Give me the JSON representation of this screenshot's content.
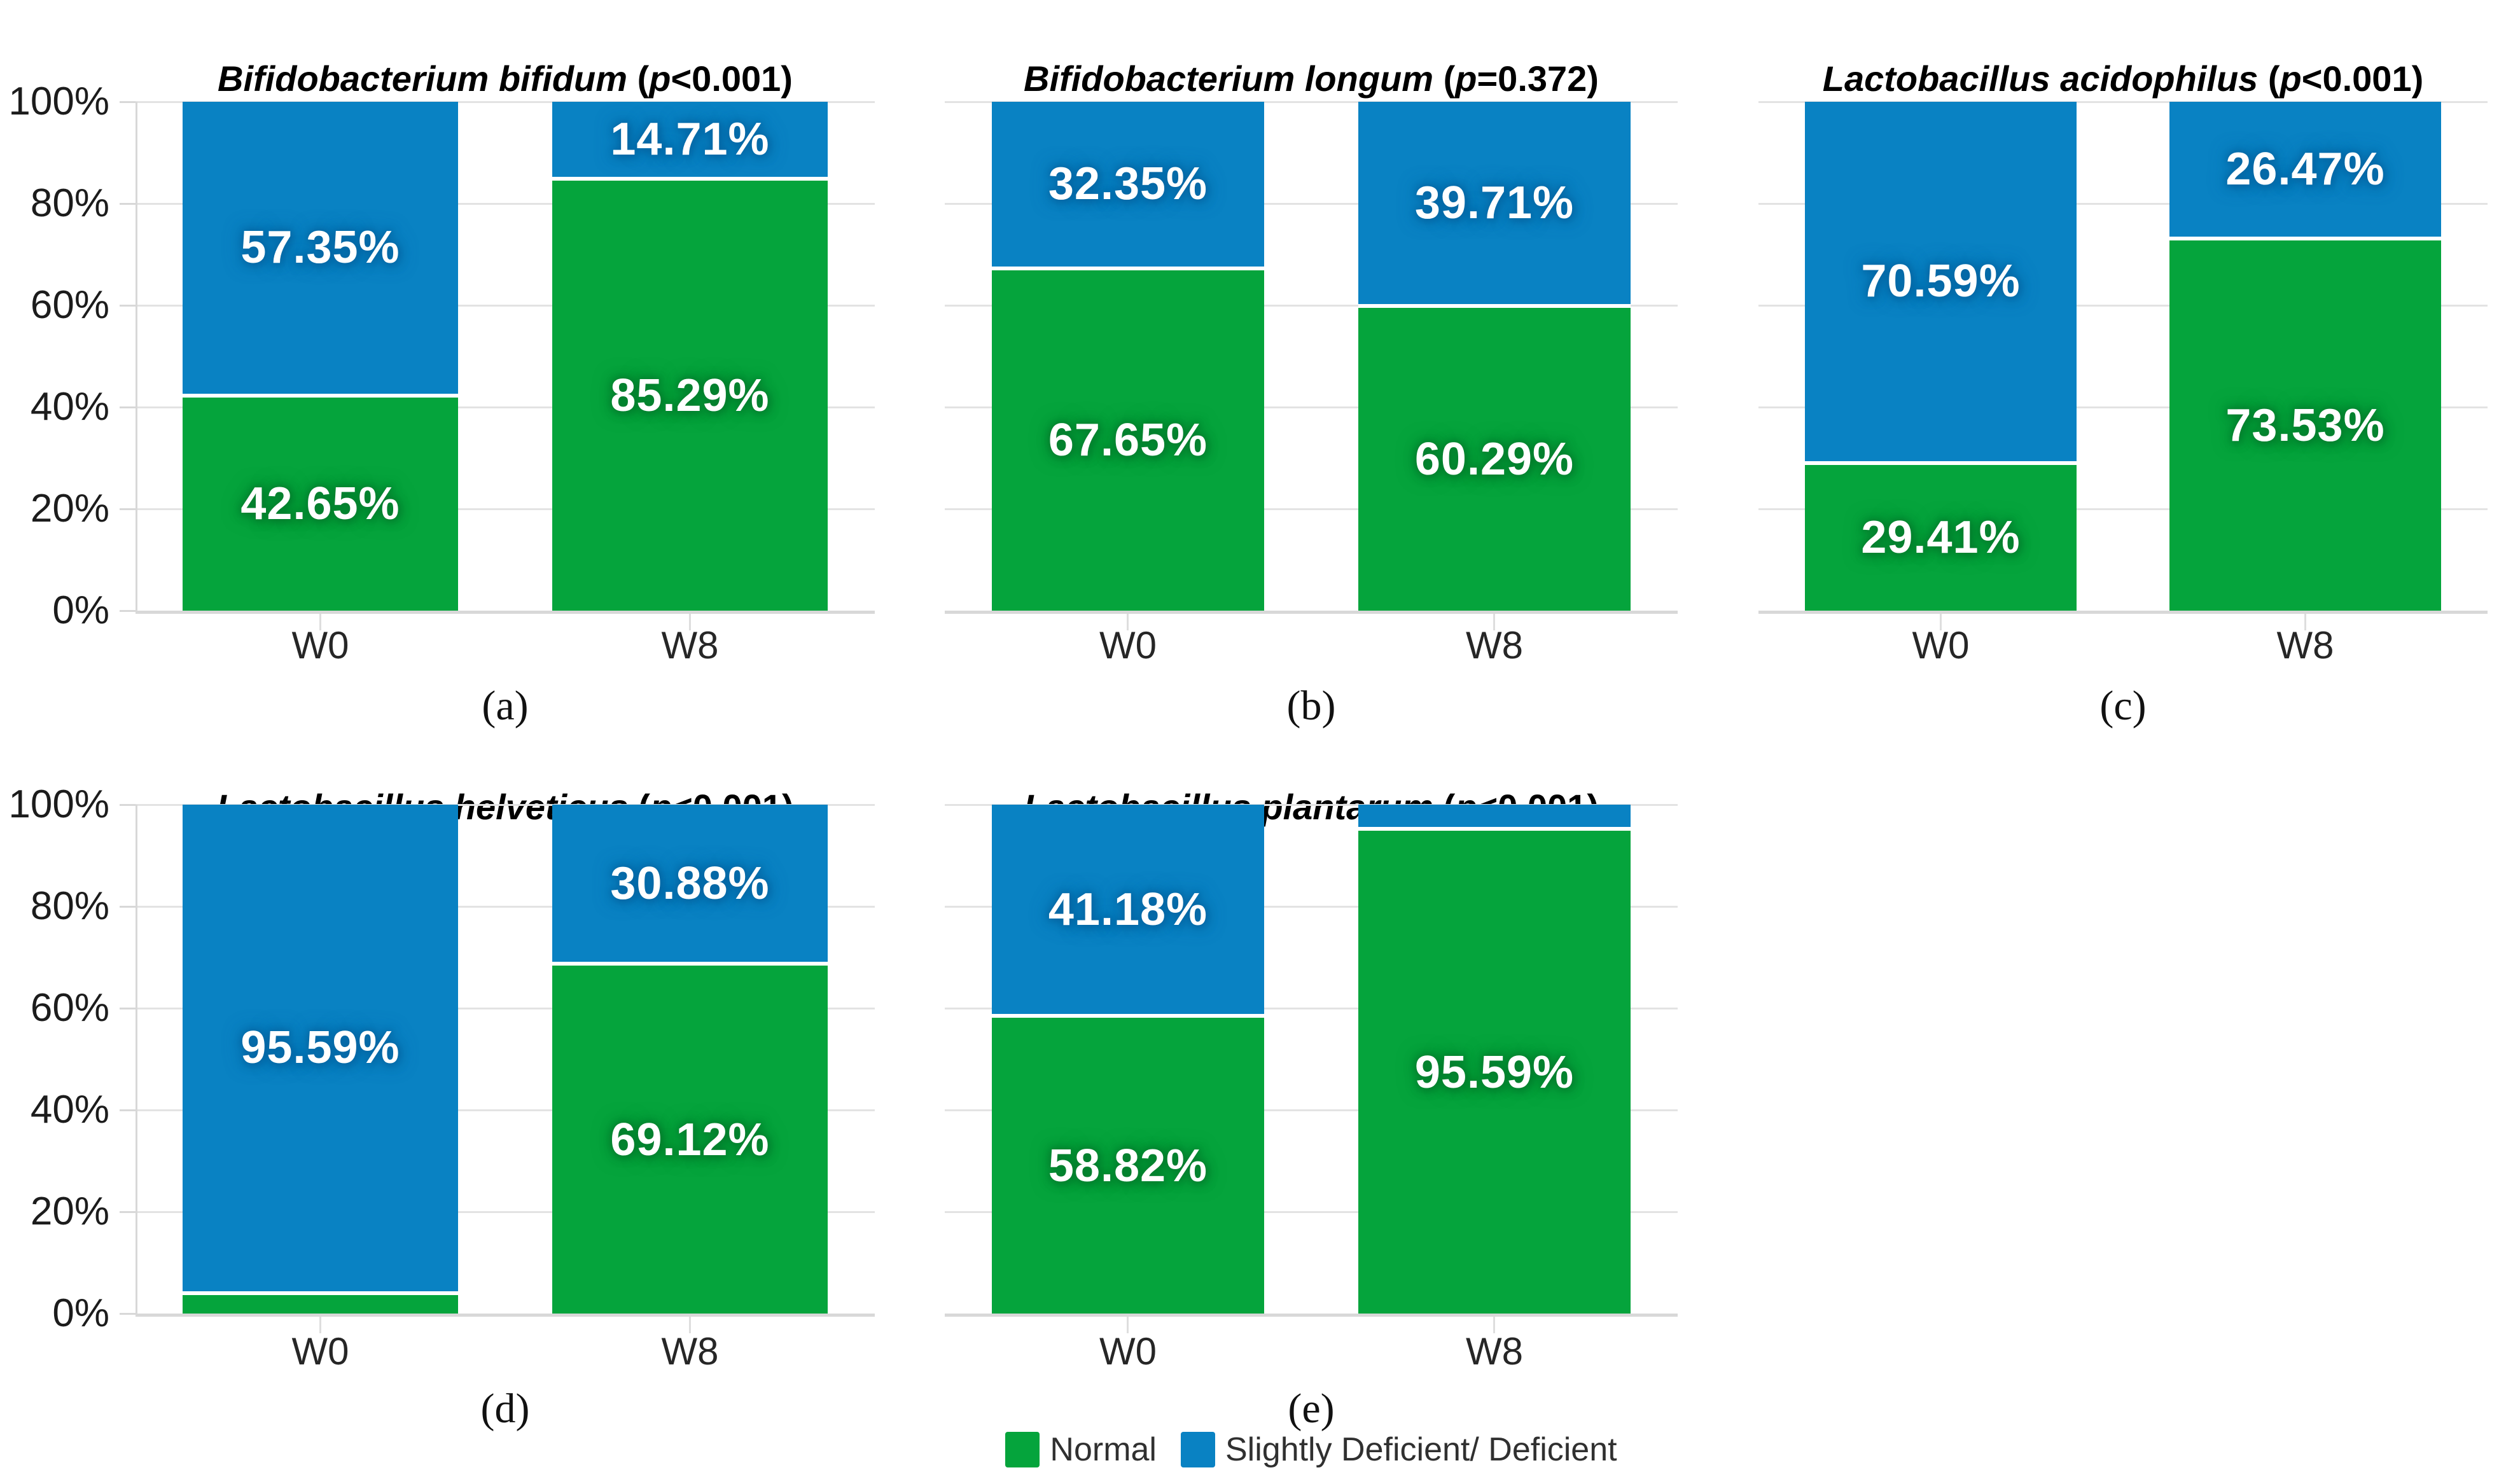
{
  "figure": {
    "description": "Five stacked bar panels comparing probiotic species status at W0 vs W8",
    "background": "#ffffff"
  },
  "palette": {
    "normal_green": "#05a43c",
    "deficient_blue": "#0982c3",
    "gridline": "#e3e3e3",
    "axis_line": "#d8d8d8",
    "title_text": "#000000",
    "axis_text": "#1c1c1c",
    "caption_text": "#111111",
    "legend_text": "#303030",
    "bar_label_text": "#ffffff"
  },
  "axis": {
    "y_ticks": [
      "100%",
      "80%",
      "60%",
      "40%",
      "20%",
      "0%"
    ],
    "x_ticks": [
      "W0",
      "W8"
    ],
    "ylim": [
      0,
      100
    ],
    "grid": true
  },
  "legend": {
    "position": "bottom-center",
    "items": [
      {
        "label": "Normal",
        "color": "#05a43c"
      },
      {
        "label": "Slightly Deficient/ Deficient",
        "color": "#0982c3"
      }
    ]
  },
  "chart_data": [
    {
      "type": "bar",
      "stacked": true,
      "panel": "a",
      "caption": "(a)",
      "title": {
        "species": "Bifidobacterium bifidum",
        "open": " (",
        "p": "p",
        "rest": "<0.001)"
      },
      "categories": [
        "W0",
        "W8"
      ],
      "ylim": [
        0,
        100
      ],
      "series": [
        {
          "name": "Normal",
          "color": "#05a43c",
          "values": [
            42.65,
            85.29
          ],
          "labels": [
            "42.65%",
            "85.29%"
          ]
        },
        {
          "name": "Slightly Deficient/ Deficient",
          "color": "#0982c3",
          "values": [
            57.35,
            14.71
          ],
          "labels": [
            "57.35%",
            "14.71%"
          ]
        }
      ]
    },
    {
      "type": "bar",
      "stacked": true,
      "panel": "b",
      "caption": "(b)",
      "title": {
        "species": "Bifidobacterium longum",
        "open": " (",
        "p": "p",
        "rest": "=0.372)"
      },
      "categories": [
        "W0",
        "W8"
      ],
      "ylim": [
        0,
        100
      ],
      "series": [
        {
          "name": "Normal",
          "color": "#05a43c",
          "values": [
            67.65,
            60.29
          ],
          "labels": [
            "67.65%",
            "60.29%"
          ]
        },
        {
          "name": "Slightly Deficient/ Deficient",
          "color": "#0982c3",
          "values": [
            32.35,
            39.71
          ],
          "labels": [
            "32.35%",
            "39.71%"
          ]
        }
      ]
    },
    {
      "type": "bar",
      "stacked": true,
      "panel": "c",
      "caption": "(c)",
      "title": {
        "species": "Lactobacillus acidophilus",
        "open": " (",
        "p": "p",
        "rest": "<0.001)"
      },
      "categories": [
        "W0",
        "W8"
      ],
      "ylim": [
        0,
        100
      ],
      "series": [
        {
          "name": "Normal",
          "color": "#05a43c",
          "values": [
            29.41,
            73.53
          ],
          "labels": [
            "29.41%",
            "73.53%"
          ]
        },
        {
          "name": "Slightly Deficient/ Deficient",
          "color": "#0982c3",
          "values": [
            70.59,
            26.47
          ],
          "labels": [
            "70.59%",
            "26.47%"
          ]
        }
      ]
    },
    {
      "type": "bar",
      "stacked": true,
      "panel": "d",
      "caption": "(d)",
      "title": {
        "species": "Lactobacillus helveticus",
        "open": " (",
        "p": "p",
        "rest": "<0.001)"
      },
      "categories": [
        "W0",
        "W8"
      ],
      "ylim": [
        0,
        100
      ],
      "series": [
        {
          "name": "Normal",
          "color": "#05a43c",
          "values": [
            4.41,
            69.12
          ],
          "labels": [
            null,
            "69.12%"
          ]
        },
        {
          "name": "Slightly Deficient/ Deficient",
          "color": "#0982c3",
          "values": [
            95.59,
            30.88
          ],
          "labels": [
            "95.59%",
            "30.88%"
          ]
        }
      ]
    },
    {
      "type": "bar",
      "stacked": true,
      "panel": "e",
      "caption": "(e)",
      "title": {
        "species": "Lactobacillus plantarum",
        "open": " (",
        "p": "p",
        "rest": "<0.001)"
      },
      "categories": [
        "W0",
        "W8"
      ],
      "ylim": [
        0,
        100
      ],
      "series": [
        {
          "name": "Normal",
          "color": "#05a43c",
          "values": [
            58.82,
            95.59
          ],
          "labels": [
            "58.82%",
            "95.59%"
          ]
        },
        {
          "name": "Slightly Deficient/ Deficient",
          "color": "#0982c3",
          "values": [
            41.18,
            4.41
          ],
          "labels": [
            "41.18%",
            null
          ]
        }
      ]
    }
  ]
}
